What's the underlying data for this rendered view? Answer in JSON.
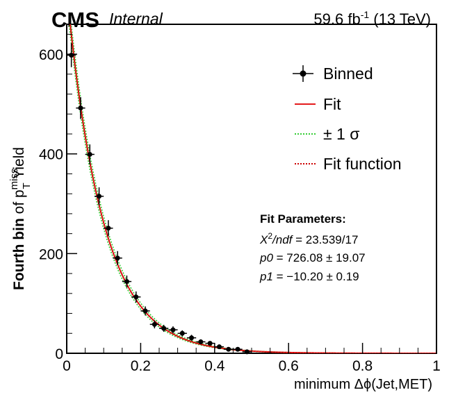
{
  "header": {
    "experiment": "CMS",
    "status": "Internal",
    "lumi_value": "59.6 fb",
    "lumi_exp": "-1",
    "lumi_energy": " (13 TeV)"
  },
  "axes": {
    "xlabel": "minimum  Δϕ(Jet,MET)",
    "ylabel_bold": "Fourth bin",
    "ylabel_of": " of p",
    "ylabel_sup": "miss",
    "ylabel_sub": "T",
    "ylabel_rest": " Yield"
  },
  "legend": {
    "binned": "Binned",
    "fit": "Fit",
    "band": "± 1 σ",
    "fit_function": "Fit function"
  },
  "fit_params": {
    "title": "Fit Parameters:",
    "chi2_pre": "X",
    "chi2_sup": "2",
    "chi2_post": "/ndf",
    "chi2_value": " = 23.539/17",
    "p0_name": "p0",
    "p0_value": " = 726.08 ± 19.07",
    "p1_name": "p1",
    "p1_value": " = −10.20 ± 0.19"
  },
  "colors": {
    "fit": "#e41a1c",
    "band": "#33cc33",
    "fit_function": "#cc0000",
    "data": "#000000"
  },
  "chart_data": {
    "type": "scatter",
    "x_range": [
      0,
      1
    ],
    "y_range": [
      0,
      660
    ],
    "x_ticks": [
      0,
      0.2,
      0.4,
      0.6,
      0.8,
      1
    ],
    "x_tick_labels": [
      "0",
      "0.2",
      "0.4",
      "0.6",
      "0.8",
      "1"
    ],
    "y_ticks": [
      0,
      200,
      400,
      600
    ],
    "y_tick_labels": [
      "0",
      "200",
      "400",
      "600"
    ],
    "bin_width": 0.025,
    "series": [
      {
        "name": "Binned",
        "x": [
          0.0125,
          0.0375,
          0.0625,
          0.0875,
          0.1125,
          0.1375,
          0.1625,
          0.1875,
          0.2125,
          0.2375,
          0.2625,
          0.2875,
          0.3125,
          0.3375,
          0.3625,
          0.3875,
          0.4125,
          0.4375,
          0.4625,
          0.4875
        ],
        "y": [
          598,
          492,
          399,
          315,
          251,
          191,
          144,
          113,
          85,
          58,
          50,
          47,
          40,
          31,
          23,
          20,
          13,
          8,
          8,
          3
        ],
        "yerr": [
          24,
          22,
          20,
          18,
          16,
          14,
          12,
          11,
          9,
          8,
          7,
          7,
          6,
          6,
          5,
          4,
          4,
          3,
          3,
          2
        ]
      }
    ],
    "fit_function": "p0*exp(p1*x)",
    "p0": 726.08,
    "p1": -10.2
  }
}
